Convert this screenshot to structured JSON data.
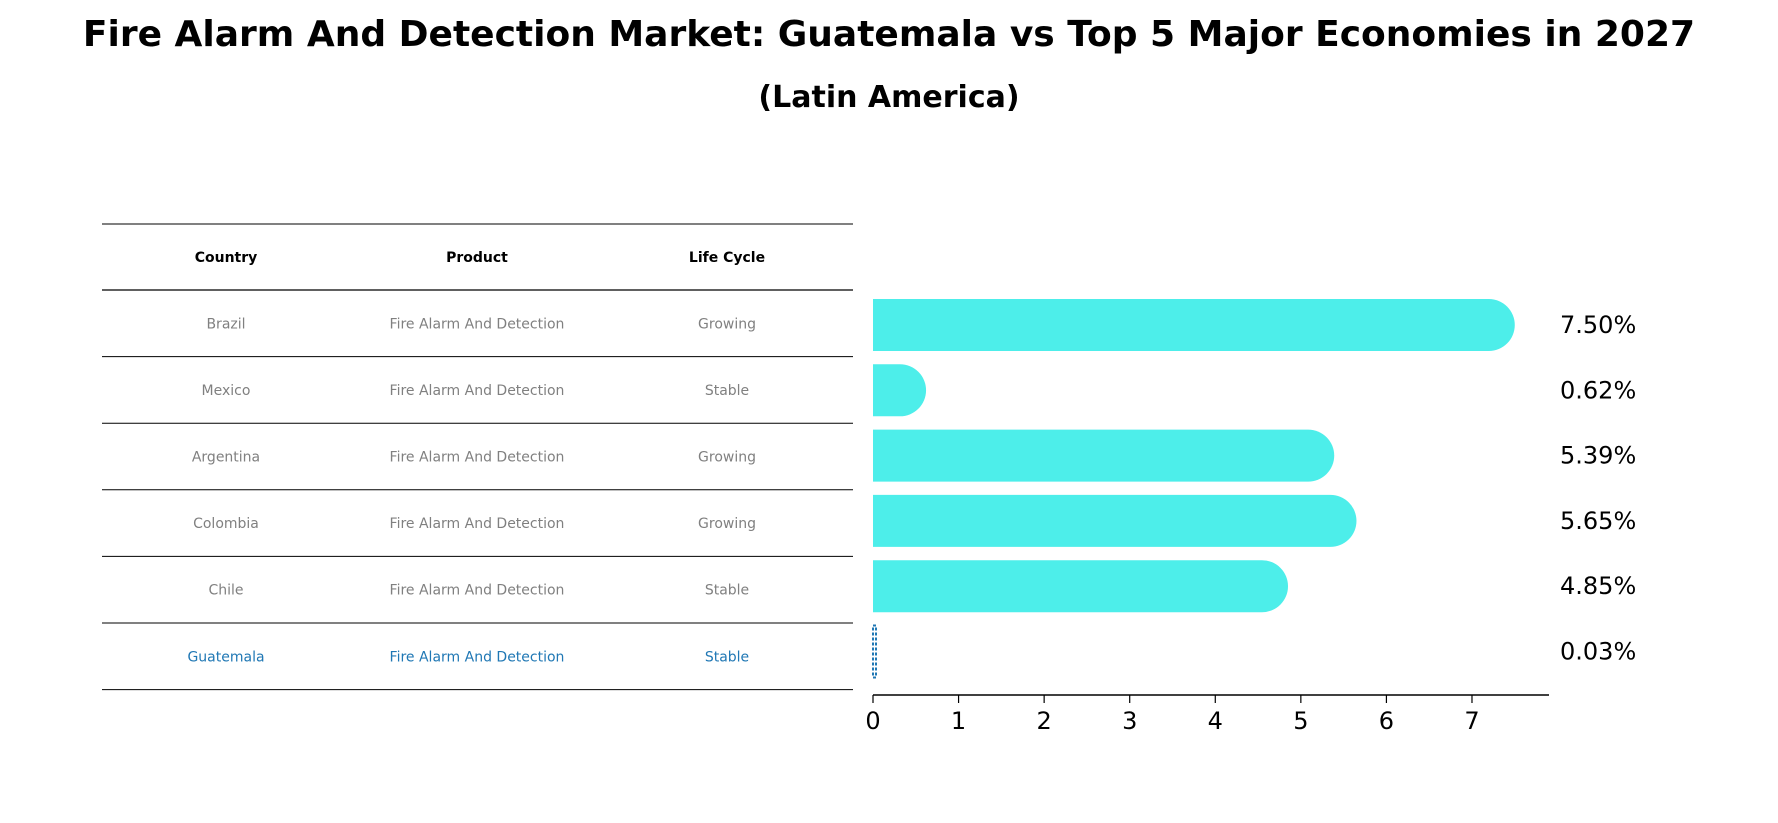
{
  "title": "Fire Alarm And Detection Market: Guatemala vs Top 5 Major Economies in 2027",
  "subtitle": "(Latin America)",
  "colors": {
    "bar": "#4DEEEA",
    "highlight": "#1F77B4",
    "muted_text": "#808080",
    "rule": "#000000"
  },
  "table": {
    "headers": [
      "Country",
      "Product",
      "Life Cycle"
    ],
    "rows": [
      {
        "country": "Brazil",
        "product": "Fire Alarm And Detection",
        "life_cycle": "Growing",
        "highlight": false
      },
      {
        "country": "Mexico",
        "product": "Fire Alarm And Detection",
        "life_cycle": "Stable",
        "highlight": false
      },
      {
        "country": "Argentina",
        "product": "Fire Alarm And Detection",
        "life_cycle": "Growing",
        "highlight": false
      },
      {
        "country": "Colombia",
        "product": "Fire Alarm And Detection",
        "life_cycle": "Growing",
        "highlight": false
      },
      {
        "country": "Chile",
        "product": "Fire Alarm And Detection",
        "life_cycle": "Stable",
        "highlight": false
      },
      {
        "country": "Guatemala",
        "product": "Fire Alarm And Detection",
        "life_cycle": "Stable",
        "highlight": true
      }
    ]
  },
  "chart_data": {
    "type": "bar",
    "orientation": "horizontal",
    "categories": [
      "Brazil",
      "Mexico",
      "Argentina",
      "Colombia",
      "Chile",
      "Guatemala"
    ],
    "values": [
      7.5,
      0.62,
      5.39,
      5.65,
      4.85,
      0.03
    ],
    "data_labels": [
      "7.50%",
      "0.62%",
      "5.39%",
      "5.65%",
      "4.85%",
      "0.03%"
    ],
    "xlim": [
      0,
      7.9
    ],
    "xticks": [
      0,
      1,
      2,
      3,
      4,
      5,
      6,
      7
    ],
    "xlabel": "",
    "ylabel": "",
    "grid": false,
    "legend": "none"
  }
}
